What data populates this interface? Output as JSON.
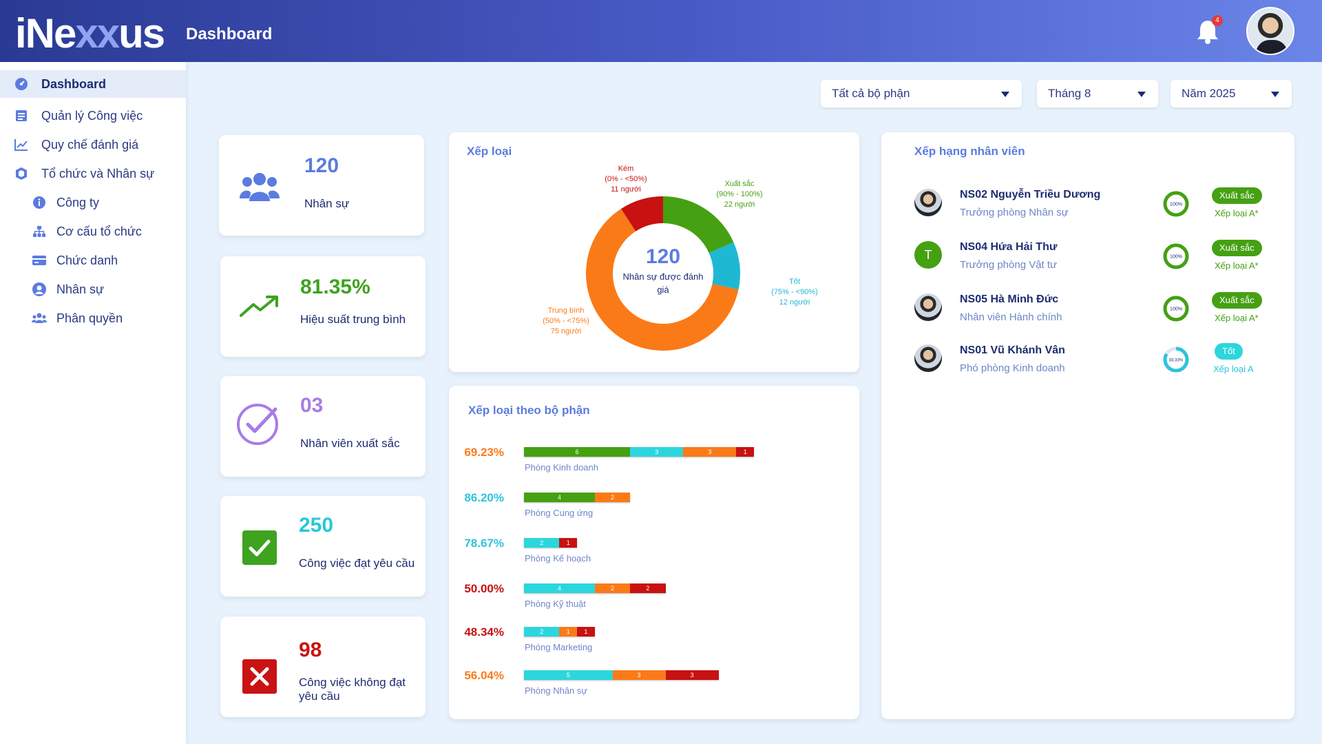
{
  "app": {
    "logo_main": "iNe",
    "logo_x": "xx",
    "logo_end": "us",
    "page_title": "Dashboard",
    "notification_count": "4"
  },
  "sidebar": {
    "items": [
      {
        "label": "Dashboard",
        "icon": "dashboard-icon"
      },
      {
        "label": "Quản lý Công việc",
        "icon": "task-list-icon"
      },
      {
        "label": "Quy chế đánh giá",
        "icon": "chart-line-icon"
      },
      {
        "label": "Tổ chức và Nhân sự",
        "icon": "cube-icon"
      },
      {
        "label": "Công ty",
        "icon": "info-icon"
      },
      {
        "label": "Cơ cấu tổ chức",
        "icon": "org-chart-icon"
      },
      {
        "label": "Chức danh",
        "icon": "id-card-icon"
      },
      {
        "label": "Nhân sự",
        "icon": "user-icon"
      },
      {
        "label": "Phân quyền",
        "icon": "users-icon"
      }
    ]
  },
  "filters": {
    "department": "Tất cả bộ phận",
    "month": "Tháng 8",
    "year": "Năm 2025"
  },
  "stats": [
    {
      "value": "120",
      "label": "Nhân sự",
      "color": "#5b7be0",
      "icon": "people-icon"
    },
    {
      "value": "81.35%",
      "label": "Hiệu suất trung bình",
      "color": "#3ea31e",
      "icon": "trend-up-icon"
    },
    {
      "value": "03",
      "label": "Nhân viên xuất sắc",
      "color": "#a77ce8",
      "icon": "check-circle-icon"
    },
    {
      "value": "250",
      "label": "Công việc đạt yêu cầu",
      "color": "#26c9d8",
      "icon": "check-box-icon"
    },
    {
      "value": "98",
      "label": "Công việc không đạt yêu cầu",
      "color": "#c91313",
      "icon": "close-box-icon"
    }
  ],
  "rating_panel": {
    "title": "Xếp loại",
    "center_value": "120",
    "center_label": "Nhân sự được đánh giá",
    "chart_data": {
      "type": "pie",
      "slices": [
        {
          "label": "Xuất sắc",
          "range": "(90% - 100%)",
          "count": 22,
          "count_text": "22 người",
          "color": "#45a012"
        },
        {
          "label": "Tốt",
          "range": "(75% - <90%)",
          "count": 12,
          "count_text": "12 người",
          "color": "#1fb8d3"
        },
        {
          "label": "Trung bình",
          "range": "(50% - <75%)",
          "count": 75,
          "count_text": "75 người",
          "color": "#fb7a18"
        },
        {
          "label": "Kém",
          "range": "(0% - <50%)",
          "count": 11,
          "count_text": "11 người",
          "color": "#c81111"
        }
      ]
    }
  },
  "dept_panel": {
    "title": "Xếp loại theo bộ phận",
    "chart_data": {
      "type": "bar",
      "series_colors": {
        "xuat_sac": "#45a012",
        "tot": "#2cd6dd",
        "trung_binh": "#fb7a18",
        "kem": "#c81111"
      },
      "rows": [
        {
          "name": "Phòng Kinh doanh",
          "pct": "69.23%",
          "pct_color": "#fb7a18",
          "segments": [
            {
              "k": "xuat_sac",
              "v": 6
            },
            {
              "k": "tot",
              "v": 3
            },
            {
              "k": "trung_binh",
              "v": 3
            },
            {
              "k": "kem",
              "v": 1
            }
          ]
        },
        {
          "name": "Phòng Cung ứng",
          "pct": "86.20%",
          "pct_color": "#2cc3dd",
          "segments": [
            {
              "k": "xuat_sac",
              "v": 4
            },
            {
              "k": "trung_binh",
              "v": 2
            }
          ]
        },
        {
          "name": "Phòng Kế hoạch",
          "pct": "78.67%",
          "pct_color": "#2cc3dd",
          "segments": [
            {
              "k": "tot",
              "v": 2
            },
            {
              "k": "kem",
              "v": 1
            }
          ]
        },
        {
          "name": "Phòng Kỹ thuật",
          "pct": "50.00%",
          "pct_color": "#c81111",
          "segments": [
            {
              "k": "tot",
              "v": 4
            },
            {
              "k": "trung_binh",
              "v": 2
            },
            {
              "k": "kem",
              "v": 2
            }
          ]
        },
        {
          "name": "Phòng Marketing",
          "pct": "48.34%",
          "pct_color": "#c81111",
          "segments": [
            {
              "k": "tot",
              "v": 2
            },
            {
              "k": "trung_binh",
              "v": 1
            },
            {
              "k": "kem",
              "v": 1
            }
          ]
        },
        {
          "name": "Phòng Nhân sự",
          "pct": "56.04%",
          "pct_color": "#fb7a18",
          "segments": [
            {
              "k": "tot",
              "v": 5
            },
            {
              "k": "trung_binh",
              "v": 3
            },
            {
              "k": "kem",
              "v": 3
            }
          ]
        }
      ]
    }
  },
  "ranking_panel": {
    "title": "Xếp hạng nhân viên",
    "employees": [
      {
        "name": "NS02 Nguyễn Triều Dương",
        "role": "Trưởng phòng Nhân sự",
        "percent": "100%",
        "ring_value": 1.0,
        "ring_color": "#45a012",
        "badge": "Xuất sắc",
        "badge_color": "#45a012",
        "grade": "Xếp loại A*",
        "grade_color": "#45a012",
        "avatar_type": "photo"
      },
      {
        "name": "NS04 Hứa Hải Thư",
        "role": "Trưởng phòng Vật tư",
        "percent": "100%",
        "ring_value": 1.0,
        "ring_color": "#45a012",
        "badge": "Xuất sắc",
        "badge_color": "#45a012",
        "grade": "Xếp loại A*",
        "grade_color": "#45a012",
        "avatar_type": "initial",
        "initial": "T"
      },
      {
        "name": "NS05 Hà Minh Đức",
        "role": "Nhân viên Hành chính",
        "percent": "100%",
        "ring_value": 1.0,
        "ring_color": "#45a012",
        "badge": "Xuất sắc",
        "badge_color": "#45a012",
        "grade": "Xếp loại A*",
        "grade_color": "#45a012",
        "avatar_type": "photo"
      },
      {
        "name": "NS01 Vũ Khánh Vân",
        "role": "Phó phòng Kinh doanh",
        "percent": "83.33%",
        "ring_value": 0.8333,
        "ring_color": "#2cc3dd",
        "badge": "Tốt",
        "badge_color": "#2cd6dd",
        "grade": "Xếp loại A",
        "grade_color": "#2cc3dd",
        "avatar_type": "photo"
      }
    ]
  }
}
